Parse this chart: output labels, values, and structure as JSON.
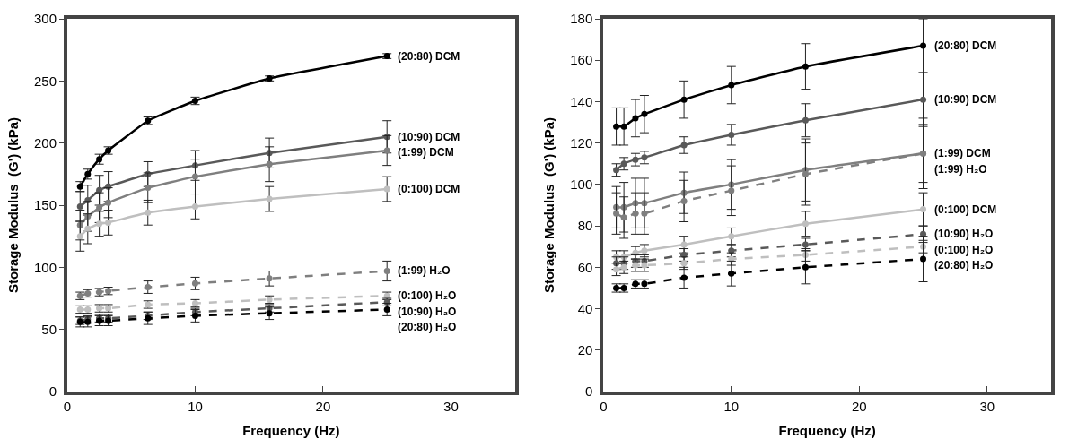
{
  "chart_data": [
    {
      "type": "line",
      "xlabel": "Frequency (Hz)",
      "ylabel": "Storage Modulus  (G') (kPa)",
      "x": [
        1,
        1.6,
        2.5,
        3.2,
        6.3,
        10,
        15.8,
        25
      ],
      "xlim": [
        0,
        35
      ],
      "xticks": [
        0,
        10,
        20,
        30
      ],
      "ylim": [
        0,
        300
      ],
      "yticks": [
        0,
        50,
        100,
        150,
        200,
        250,
        300
      ],
      "legend": false,
      "marker": "circle",
      "series": [
        {
          "name": "(20:80) DCM",
          "color": "#000000",
          "line_style": "solid",
          "values": [
            165,
            175,
            187,
            194,
            218,
            234,
            252,
            270
          ],
          "errors": [
            4,
            4,
            4,
            3,
            3,
            3,
            2,
            2
          ]
        },
        {
          "name": "(10:90) DCM",
          "color": "#595959",
          "line_style": "solid",
          "values": [
            149,
            154,
            162,
            165,
            175,
            182,
            192,
            205
          ],
          "errors": [
            12,
            12,
            12,
            12,
            10,
            12,
            12,
            13
          ]
        },
        {
          "name": "(1:99) DCM",
          "color": "#7f7f7f",
          "line_style": "solid",
          "values": [
            134,
            141,
            148,
            152,
            164,
            173,
            183,
            194
          ],
          "errors": [
            12,
            12,
            12,
            12,
            12,
            14,
            14,
            12
          ]
        },
        {
          "name": "(0:100) DCM",
          "color": "#bfbfbf",
          "line_style": "solid",
          "values": [
            125,
            131,
            135,
            136,
            144,
            149,
            155,
            163
          ],
          "errors": [
            12,
            12,
            10,
            10,
            10,
            10,
            10,
            10
          ]
        },
        {
          "name": "(1:99) H₂O",
          "color": "#7f7f7f",
          "line_style": "dashed",
          "values": [
            77,
            79,
            80,
            81,
            84,
            87,
            91,
            97
          ],
          "errors": [
            3,
            3,
            3,
            3,
            5,
            5,
            6,
            8
          ]
        },
        {
          "name": "(0:100) H₂O",
          "color": "#bfbfbf",
          "line_style": "dashed",
          "values": [
            66,
            66,
            67,
            67,
            70,
            71,
            74,
            77
          ],
          "errors": [
            3,
            3,
            3,
            3,
            3,
            3,
            3,
            3
          ]
        },
        {
          "name": "(10:90) H₂O",
          "color": "#595959",
          "line_style": "dashed",
          "values": [
            57,
            58,
            59,
            59,
            61,
            64,
            67,
            72
          ],
          "errors": [
            3,
            3,
            3,
            3,
            3,
            3,
            3,
            3
          ]
        },
        {
          "name": "(20:80) H₂O",
          "color": "#000000",
          "line_style": "dashed",
          "values": [
            56,
            56,
            57,
            57,
            59,
            61,
            63,
            66
          ],
          "errors": [
            4,
            4,
            4,
            4,
            5,
            5,
            5,
            5
          ]
        }
      ]
    },
    {
      "type": "line",
      "xlabel": "Frequency (Hz)",
      "ylabel": "Storage Modulus  (G') (kPa)",
      "x": [
        1,
        1.6,
        2.5,
        3.2,
        6.3,
        10,
        15.8,
        25
      ],
      "xlim": [
        0,
        35
      ],
      "xticks": [
        0,
        10,
        20,
        30
      ],
      "ylim": [
        0,
        180
      ],
      "yticks": [
        0,
        20,
        40,
        60,
        80,
        100,
        120,
        140,
        160,
        180
      ],
      "legend": false,
      "marker": "circle",
      "series": [
        {
          "name": "(20:80) DCM",
          "color": "#000000",
          "line_style": "solid",
          "values": [
            128,
            128,
            132,
            134,
            141,
            148,
            157,
            167
          ],
          "errors": [
            9,
            9,
            9,
            9,
            9,
            9,
            11,
            13
          ]
        },
        {
          "name": "(10:90) DCM",
          "color": "#595959",
          "line_style": "solid",
          "values": [
            107,
            110,
            112,
            113,
            119,
            124,
            131,
            141
          ],
          "errors": [
            3,
            3,
            3,
            3,
            4,
            5,
            8,
            13
          ]
        },
        {
          "name": "(1:99) DCM",
          "color": "#7f7f7f",
          "line_style": "solid",
          "values": [
            89,
            89,
            91,
            91,
            96,
            100,
            107,
            115
          ],
          "errors": [
            10,
            12,
            12,
            12,
            10,
            12,
            15,
            17
          ]
        },
        {
          "name": "(1:99) H₂O",
          "color": "#7f7f7f",
          "line_style": "dashed",
          "values": [
            86,
            84,
            86,
            86,
            92,
            97,
            105,
            115
          ],
          "errors": [
            10,
            10,
            10,
            10,
            10,
            12,
            15,
            14
          ]
        },
        {
          "name": "(0:100) DCM",
          "color": "#bfbfbf",
          "line_style": "solid",
          "values": [
            65,
            65,
            67,
            68,
            71,
            75,
            81,
            88
          ],
          "errors": [
            3,
            3,
            3,
            3,
            4,
            4,
            6,
            8
          ]
        },
        {
          "name": "(10:90) H₂O",
          "color": "#595959",
          "line_style": "dashed",
          "values": [
            62,
            62,
            63,
            63,
            66,
            68,
            71,
            76
          ],
          "errors": [
            3,
            3,
            3,
            3,
            3,
            3,
            3,
            4
          ]
        },
        {
          "name": "(0:100) H₂O",
          "color": "#bfbfbf",
          "line_style": "dashed",
          "values": [
            59,
            60,
            61,
            61,
            62,
            64,
            66,
            70
          ],
          "errors": [
            3,
            3,
            3,
            3,
            3,
            3,
            3,
            3
          ]
        },
        {
          "name": "(20:80) H₂O",
          "color": "#000000",
          "line_style": "dashed",
          "values": [
            50,
            50,
            52,
            52,
            55,
            57,
            60,
            64
          ],
          "errors": [
            2,
            2,
            2,
            2,
            5,
            6,
            8,
            11
          ]
        }
      ]
    }
  ]
}
